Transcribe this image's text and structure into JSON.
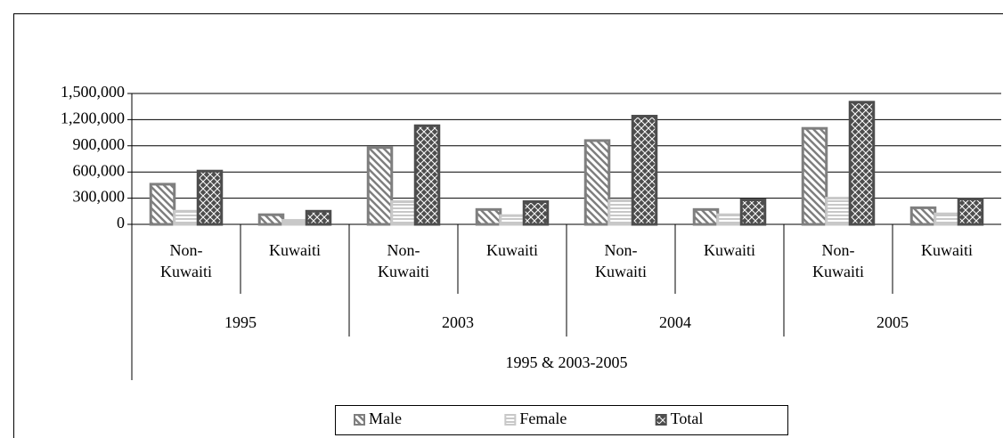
{
  "chart_data": {
    "type": "bar",
    "categories": [
      "Non-Kuwaiti",
      "Kuwaiti",
      "Non-Kuwaiti",
      "Kuwaiti",
      "Non-Kuwaiti",
      "Kuwaiti",
      "Non-Kuwaiti",
      "Kuwaiti"
    ],
    "groups": [
      "1995",
      "2003",
      "2004",
      "2005"
    ],
    "category_group": "1995 & 2003-2005",
    "series": [
      {
        "name": "Male",
        "color": "#7f7f7f",
        "pattern": "diagonal",
        "values": [
          460000,
          110000,
          880000,
          170000,
          960000,
          170000,
          1100000,
          190000
        ]
      },
      {
        "name": "Female",
        "color": "#c8c8c8",
        "pattern": "horizontal",
        "values": [
          150000,
          45000,
          260000,
          100000,
          270000,
          110000,
          300000,
          120000
        ]
      },
      {
        "name": "Total",
        "color": "#4d4d4d",
        "pattern": "crosshatch",
        "values": [
          610000,
          150000,
          1130000,
          260000,
          1240000,
          280000,
          1400000,
          290000
        ]
      }
    ],
    "ylim": [
      0,
      1500000
    ],
    "yticks": [
      0,
      {
        "value": 300000,
        "label": "300,000"
      },
      {
        "value": 600000,
        "label": "600,000"
      },
      {
        "value": 900000,
        "label": "900,000"
      },
      {
        "value": 1200000,
        "label": "1,200,000"
      },
      {
        "value": 1500000,
        "label": "1,500,000"
      }
    ],
    "grid": true,
    "legend": "bottom"
  }
}
